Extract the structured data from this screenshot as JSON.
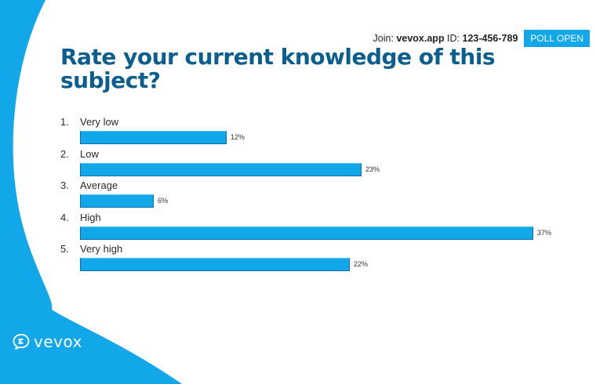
{
  "header": {
    "join_prefix": "Join: ",
    "join_site": "vevox.app",
    "id_prefix": " ID: ",
    "session_id": "123-456-789",
    "poll_status": "POLL OPEN"
  },
  "question": {
    "title": "Rate your current knowledge of this subject?"
  },
  "options": [
    {
      "number": "1.",
      "label": "Very low",
      "percent": 12,
      "percent_label": "12%"
    },
    {
      "number": "2.",
      "label": "Low",
      "percent": 23,
      "percent_label": "23%"
    },
    {
      "number": "3.",
      "label": "Average",
      "percent": 6,
      "percent_label": "6%"
    },
    {
      "number": "4.",
      "label": "High",
      "percent": 37,
      "percent_label": "37%"
    },
    {
      "number": "5.",
      "label": "Very high",
      "percent": 22,
      "percent_label": "22%"
    }
  ],
  "branding": {
    "logo_text": "vevox",
    "logo_icon": "vevox-chat-bubble-icon"
  },
  "colors": {
    "accent": "#11a7e8",
    "title": "#0b5e8e"
  }
}
